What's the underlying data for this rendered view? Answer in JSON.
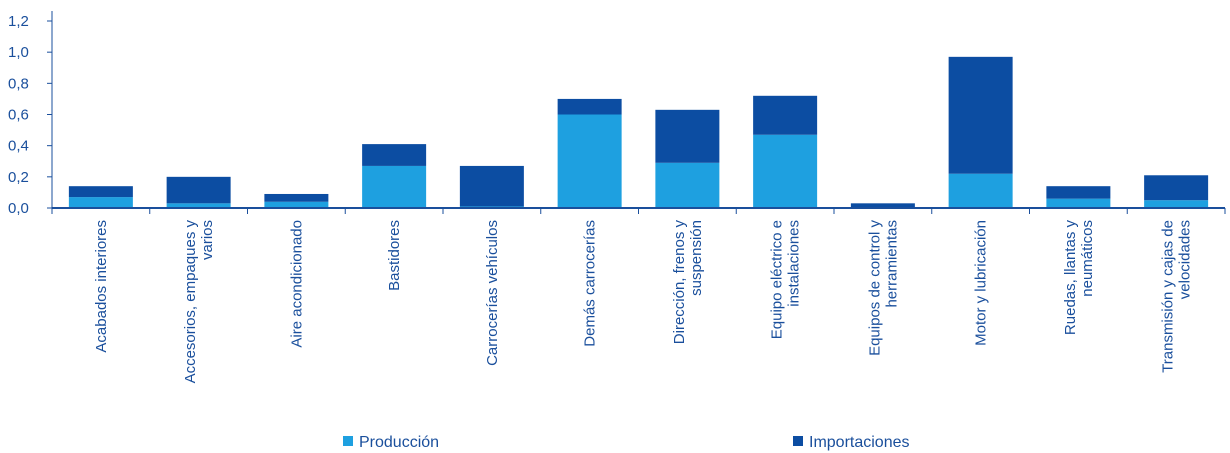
{
  "chart_data": {
    "type": "bar",
    "stacked": true,
    "categories": [
      [
        "Acabados interiores"
      ],
      [
        "Accesorios, empaques y",
        "varios"
      ],
      [
        "Aire acondicionado"
      ],
      [
        "Bastidores"
      ],
      [
        "Carrocerías vehículos"
      ],
      [
        "Demás carrocerías"
      ],
      [
        "Dirección, frenos y",
        "suspensión"
      ],
      [
        "Equipo eléctrico e",
        "instalaciones"
      ],
      [
        "Equipos de control y",
        "herramientas"
      ],
      [
        "Motor y lubricación"
      ],
      [
        "Ruedas, llantas y",
        "neumáticos"
      ],
      [
        "Transmisión y cajas de",
        "velocidades"
      ]
    ],
    "series": [
      {
        "name": "Producción",
        "color": "#1ea0e0",
        "values": [
          0.07,
          0.03,
          0.04,
          0.27,
          0.01,
          0.6,
          0.29,
          0.47,
          0.0,
          0.22,
          0.06,
          0.05
        ]
      },
      {
        "name": "Importaciones",
        "color": "#0c4da2",
        "values": [
          0.07,
          0.17,
          0.05,
          0.14,
          0.26,
          0.1,
          0.34,
          0.25,
          0.03,
          0.75,
          0.08,
          0.16
        ]
      }
    ],
    "ylim": [
      0,
      1.2
    ],
    "yticks": [
      "0,0",
      "0,2",
      "0,4",
      "0,6",
      "0,8",
      "1,0",
      "1,2"
    ],
    "grid": false,
    "legend": "bottom",
    "axis_color": "#1a4f9c"
  }
}
